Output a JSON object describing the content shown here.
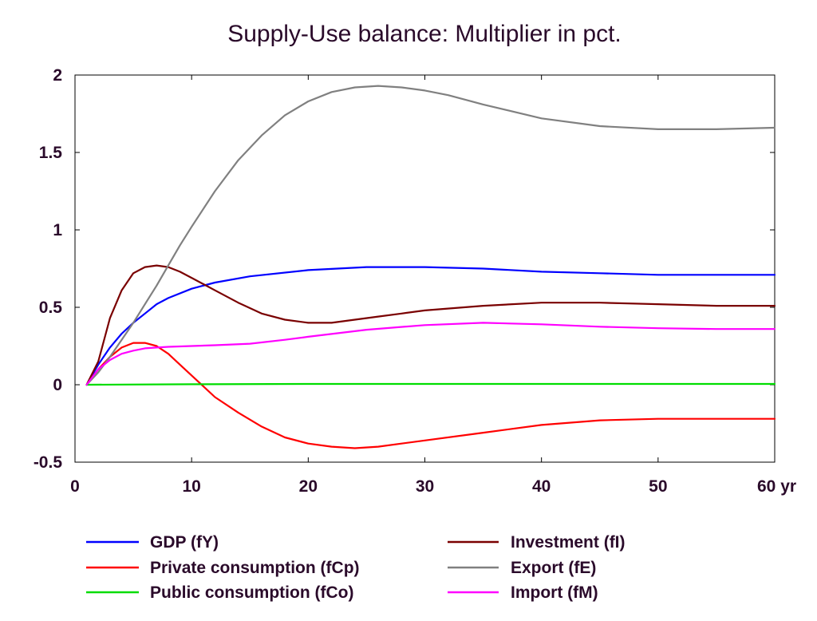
{
  "chart_data": {
    "type": "line",
    "title": "Supply-Use balance: Multiplier in pct.",
    "xlabel": "",
    "ylabel": "",
    "x_unit": "yr",
    "xlim": [
      0,
      60
    ],
    "ylim": [
      -0.5,
      2
    ],
    "xticks": [
      0,
      10,
      20,
      30,
      40,
      50,
      60
    ],
    "xtick_labels": [
      "0",
      "10",
      "20",
      "30",
      "40",
      "50",
      "60 yr"
    ],
    "yticks": [
      -0.5,
      0,
      0.5,
      1,
      1.5,
      2
    ],
    "ytick_labels": [
      "-0.5",
      "0",
      "0.5",
      "1",
      "1.5",
      "2"
    ],
    "grid": false,
    "legend_position": "bottom",
    "series": [
      {
        "name": "GDP (fY)",
        "color": "#0000ff",
        "x": [
          1,
          2,
          3,
          4,
          5,
          6,
          7,
          8,
          10,
          12,
          15,
          20,
          25,
          30,
          35,
          40,
          45,
          50,
          55,
          60
        ],
        "y": [
          0,
          0.13,
          0.24,
          0.33,
          0.4,
          0.46,
          0.52,
          0.56,
          0.62,
          0.66,
          0.7,
          0.74,
          0.76,
          0.76,
          0.75,
          0.73,
          0.72,
          0.71,
          0.71,
          0.71
        ]
      },
      {
        "name": "Private consumption (fCp)",
        "color": "#ff0000",
        "x": [
          1,
          2,
          3,
          4,
          5,
          6,
          7,
          8,
          9,
          10,
          11,
          12,
          14,
          16,
          18,
          20,
          22,
          24,
          26,
          28,
          30,
          35,
          40,
          45,
          50,
          55,
          60
        ],
        "y": [
          0,
          0.1,
          0.18,
          0.24,
          0.27,
          0.27,
          0.25,
          0.2,
          0.13,
          0.06,
          -0.01,
          -0.08,
          -0.18,
          -0.27,
          -0.34,
          -0.38,
          -0.4,
          -0.41,
          -0.4,
          -0.38,
          -0.36,
          -0.31,
          -0.26,
          -0.23,
          -0.22,
          -0.22,
          -0.22
        ]
      },
      {
        "name": "Public consumption (fCo)",
        "color": "#00dd00",
        "x": [
          1,
          10,
          20,
          30,
          40,
          50,
          60
        ],
        "y": [
          0,
          0.003,
          0.005,
          0.005,
          0.005,
          0.005,
          0.005
        ]
      },
      {
        "name": "Investment (fI)",
        "color": "#7a0000",
        "x": [
          1,
          2,
          3,
          4,
          5,
          6,
          7,
          8,
          9,
          10,
          11,
          12,
          14,
          16,
          18,
          20,
          22,
          24,
          26,
          28,
          30,
          35,
          40,
          45,
          50,
          55,
          60
        ],
        "y": [
          0,
          0.15,
          0.43,
          0.61,
          0.72,
          0.76,
          0.77,
          0.76,
          0.73,
          0.69,
          0.65,
          0.61,
          0.53,
          0.46,
          0.42,
          0.4,
          0.4,
          0.42,
          0.44,
          0.46,
          0.48,
          0.51,
          0.53,
          0.53,
          0.52,
          0.51,
          0.51
        ]
      },
      {
        "name": "Export (fE)",
        "color": "#808080",
        "x": [
          1,
          2,
          3,
          4,
          5,
          6,
          7,
          8,
          9,
          10,
          12,
          14,
          16,
          18,
          20,
          22,
          24,
          26,
          28,
          30,
          32,
          35,
          40,
          45,
          50,
          55,
          60
        ],
        "y": [
          0,
          0.08,
          0.18,
          0.29,
          0.4,
          0.52,
          0.64,
          0.77,
          0.9,
          1.02,
          1.25,
          1.45,
          1.61,
          1.74,
          1.83,
          1.89,
          1.92,
          1.93,
          1.92,
          1.9,
          1.87,
          1.81,
          1.72,
          1.67,
          1.65,
          1.65,
          1.66
        ]
      },
      {
        "name": "Import (fM)",
        "color": "#ff00ff",
        "x": [
          1,
          2,
          3,
          4,
          5,
          6,
          7,
          8,
          10,
          12,
          15,
          18,
          20,
          25,
          30,
          35,
          40,
          45,
          50,
          55,
          60
        ],
        "y": [
          0,
          0.1,
          0.16,
          0.2,
          0.22,
          0.235,
          0.24,
          0.245,
          0.25,
          0.255,
          0.265,
          0.29,
          0.31,
          0.355,
          0.385,
          0.4,
          0.39,
          0.375,
          0.365,
          0.36,
          0.36
        ]
      }
    ]
  }
}
